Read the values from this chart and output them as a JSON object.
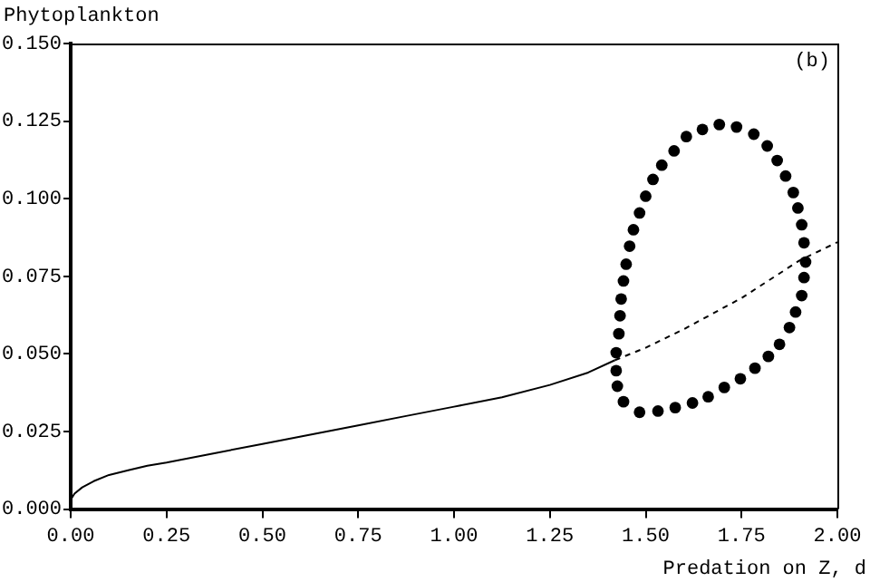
{
  "chart_data": {
    "type": "line",
    "xlabel": "Predation on Z, d",
    "ylabel": "Phytoplankton",
    "annotations": [
      "(b)"
    ],
    "xlim": [
      0,
      2
    ],
    "xticks": [
      {
        "value": 0,
        "label": "0.00"
      },
      {
        "value": 0.25,
        "label": "0.25"
      },
      {
        "value": 0.5,
        "label": "0.50"
      },
      {
        "value": 0.75,
        "label": "0.75"
      },
      {
        "value": 1,
        "label": "1.00"
      },
      {
        "value": 1.25,
        "label": "1.25"
      },
      {
        "value": 1.5,
        "label": "1.50"
      },
      {
        "value": 1.75,
        "label": "1.75"
      },
      {
        "value": 2,
        "label": "2.00"
      }
    ],
    "ylim": [
      0,
      0.15
    ],
    "yticks": [
      {
        "value": 0,
        "label": "0.000"
      },
      {
        "value": 0.025,
        "label": "0.025"
      },
      {
        "value": 0.05,
        "label": "0.050"
      },
      {
        "value": 0.075,
        "label": "0.075"
      },
      {
        "value": 0.1,
        "label": "0.100"
      },
      {
        "value": 0.125,
        "label": "0.125"
      },
      {
        "value": 0.15,
        "label": "0.150"
      }
    ],
    "grid": false,
    "legend": false,
    "series": [
      {
        "color": "#000000",
        "line_style": "solid",
        "marker": "none",
        "x": [
          0,
          0.01,
          0.03,
          0.06,
          0.1,
          0.15,
          0.2,
          0.25,
          0.375,
          0.5,
          0.625,
          0.75,
          0.875,
          1.0,
          1.125,
          1.25,
          1.35,
          1.42
        ],
        "values": [
          0.003,
          0.005,
          0.007,
          0.009,
          0.011,
          0.0125,
          0.014,
          0.015,
          0.018,
          0.021,
          0.024,
          0.027,
          0.03,
          0.033,
          0.036,
          0.04,
          0.044,
          0.048
        ]
      },
      {
        "color": "#000000",
        "line_style": "dashed",
        "marker": "none",
        "x": [
          1.42,
          1.5,
          1.6,
          1.75,
          1.9,
          2.0
        ],
        "values": [
          0.048,
          0.052,
          0.058,
          0.068,
          0.08,
          0.086
        ]
      },
      {
        "type": "scatter",
        "color": "#000000",
        "marker": "circle",
        "x": [
          1.423,
          1.43,
          1.433,
          1.436,
          1.442,
          1.449,
          1.458,
          1.468,
          1.484,
          1.5,
          1.519,
          1.542,
          1.574,
          1.606,
          1.648,
          1.692,
          1.737,
          1.782,
          1.817,
          1.843,
          1.865,
          1.885,
          1.897,
          1.907,
          1.913,
          1.917,
          1.913,
          1.907,
          1.891,
          1.875,
          1.849,
          1.82,
          1.785,
          1.747,
          1.705,
          1.663,
          1.622,
          1.577,
          1.532,
          1.484,
          1.442,
          1.426,
          1.423
        ],
        "values": [
          0.0504,
          0.0565,
          0.0623,
          0.0677,
          0.0735,
          0.0789,
          0.0847,
          0.09,
          0.0954,
          0.1008,
          0.1062,
          0.1108,
          0.1154,
          0.12,
          0.1223,
          0.1239,
          0.1231,
          0.1208,
          0.117,
          0.1123,
          0.1073,
          0.102,
          0.097,
          0.0916,
          0.0858,
          0.0796,
          0.0746,
          0.0688,
          0.0635,
          0.0585,
          0.0531,
          0.0492,
          0.0454,
          0.042,
          0.0392,
          0.0362,
          0.0342,
          0.0327,
          0.0316,
          0.0312,
          0.0346,
          0.0396,
          0.0446
        ]
      }
    ]
  }
}
